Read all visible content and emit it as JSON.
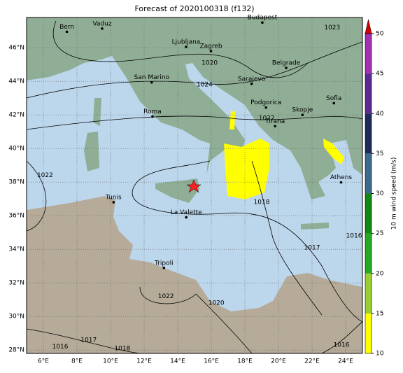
{
  "title": "Forecast of 2020100318 (f132)",
  "map": {
    "lon_lim": [
      5,
      25
    ],
    "lat_lim": [
      27.8,
      47.8
    ],
    "lon_ticks": [
      {
        "value": 6,
        "label": "6°E"
      },
      {
        "value": 8,
        "label": "8°E"
      },
      {
        "value": 10,
        "label": "10°E"
      },
      {
        "value": 12,
        "label": "12°E"
      },
      {
        "value": 14,
        "label": "14°E"
      },
      {
        "value": 16,
        "label": "16°E"
      },
      {
        "value": 18,
        "label": "18°E"
      },
      {
        "value": 20,
        "label": "20°E"
      },
      {
        "value": 22,
        "label": "22°E"
      },
      {
        "value": 24,
        "label": "24°E"
      }
    ],
    "lat_ticks": [
      {
        "value": 28,
        "label": "28°N"
      },
      {
        "value": 30,
        "label": "30°N"
      },
      {
        "value": 32,
        "label": "32°N"
      },
      {
        "value": 34,
        "label": "34°N"
      },
      {
        "value": 36,
        "label": "36°N"
      },
      {
        "value": 38,
        "label": "38°N"
      },
      {
        "value": 40,
        "label": "40°N"
      },
      {
        "value": 42,
        "label": "42°N"
      },
      {
        "value": 44,
        "label": "44°N"
      },
      {
        "value": 46,
        "label": "46°N"
      }
    ],
    "cities": [
      {
        "name": "Bern",
        "lon": 7.4,
        "lat": 46.95
      },
      {
        "name": "Vaduz",
        "lon": 9.5,
        "lat": 47.14
      },
      {
        "name": "Budapest",
        "lon": 19.04,
        "lat": 47.5
      },
      {
        "name": "Ljubljana",
        "lon": 14.5,
        "lat": 46.05
      },
      {
        "name": "Zagreb",
        "lon": 15.98,
        "lat": 45.8
      },
      {
        "name": "Belgrade",
        "lon": 20.46,
        "lat": 44.8
      },
      {
        "name": "Sarajevo",
        "lon": 18.4,
        "lat": 43.85
      },
      {
        "name": "Podgorica",
        "lon": 19.26,
        "lat": 42.44
      },
      {
        "name": "Skopje",
        "lon": 21.43,
        "lat": 42.0
      },
      {
        "name": "Sofia",
        "lon": 23.3,
        "lat": 42.7
      },
      {
        "name": "Tirana",
        "lon": 19.8,
        "lat": 41.33
      },
      {
        "name": "San Marino",
        "lon": 12.45,
        "lat": 43.94
      },
      {
        "name": "Roma",
        "lon": 12.5,
        "lat": 41.9
      },
      {
        "name": "Tunis",
        "lon": 10.18,
        "lat": 36.8
      },
      {
        "name": "La Valette",
        "lon": 14.51,
        "lat": 35.9
      },
      {
        "name": "Tripoli",
        "lon": 13.18,
        "lat": 32.89
      },
      {
        "name": "Athens",
        "lon": 23.73,
        "lat": 37.98
      }
    ],
    "isobar_labels": [
      {
        "label": "1023",
        "lon": 23.2,
        "lat": 47.2
      },
      {
        "label": "1020",
        "lon": 15.9,
        "lat": 45.1
      },
      {
        "label": "1024",
        "lon": 15.6,
        "lat": 43.8
      },
      {
        "label": "1022",
        "lon": 19.3,
        "lat": 41.8
      },
      {
        "label": "1022",
        "lon": 6.1,
        "lat": 38.4
      },
      {
        "label": "1018",
        "lon": 19.0,
        "lat": 36.8
      },
      {
        "label": "1017",
        "lon": 22.0,
        "lat": 34.1
      },
      {
        "label": "1016",
        "lon": 24.5,
        "lat": 34.8
      },
      {
        "label": "1022",
        "lon": 13.3,
        "lat": 31.2
      },
      {
        "label": "1020",
        "lon": 16.3,
        "lat": 30.8
      },
      {
        "label": "1017",
        "lon": 8.7,
        "lat": 28.6
      },
      {
        "label": "1018",
        "lon": 10.7,
        "lat": 28.1
      },
      {
        "label": "1016",
        "lon": 7.0,
        "lat": 28.2
      },
      {
        "label": "1016",
        "lon": 23.75,
        "lat": 28.3
      }
    ]
  },
  "colorbar": {
    "label": "10 m wind speed (m/s)",
    "lim": [
      10,
      50
    ],
    "ticks": [
      10,
      15,
      20,
      25,
      30,
      35,
      40,
      45,
      50
    ],
    "colors": [
      "#ffff00",
      "#9acd32",
      "#22aa22",
      "#118811",
      "#3a6a8e",
      "#1c2a5a",
      "#5a2a8e",
      "#a030b0"
    ],
    "extend_color": "#dd0000"
  }
}
